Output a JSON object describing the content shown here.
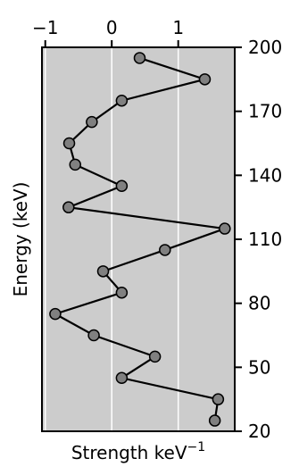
{
  "chart_data": {
    "type": "line",
    "xlabel": "Strength keV",
    "xlabel_sup": "−1",
    "ylabel": "Energy (keV)",
    "xlim": [
      -1.05,
      1.85
    ],
    "ylim": [
      20,
      200
    ],
    "x_ticks": [
      -1,
      0,
      1
    ],
    "x_tick_labels": [
      "−1",
      "0",
      "1"
    ],
    "y_ticks": [
      20,
      50,
      80,
      110,
      140,
      170,
      200
    ],
    "y_tick_labels": [
      "20",
      "50",
      "80",
      "110",
      "140",
      "170",
      "200"
    ],
    "grid": true,
    "background": "#cccccc",
    "line_color": "#000000",
    "marker_color": "#808080",
    "series": [
      {
        "x": [
          1.55,
          1.6,
          0.15,
          0.65,
          -0.27,
          -0.85,
          0.15,
          -0.13,
          0.8,
          1.7,
          -0.65,
          0.15,
          -0.55,
          -0.64,
          -0.3,
          0.15,
          1.4,
          0.42
        ],
        "y": [
          25,
          35,
          45,
          55,
          65,
          75,
          85,
          95,
          105,
          115,
          125,
          135,
          145,
          155,
          165,
          175,
          185,
          195
        ]
      }
    ]
  }
}
